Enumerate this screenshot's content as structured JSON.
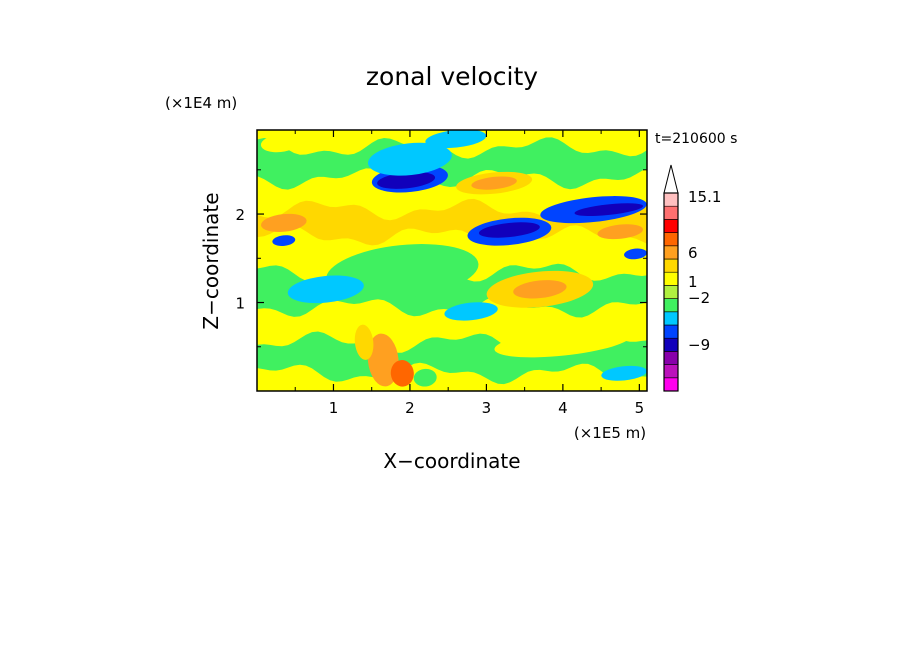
{
  "chart_data": {
    "type": "heatmap",
    "title": "zonal velocity",
    "xlabel": "X−coordinate",
    "ylabel": "Z−coordinate",
    "x_unit": "(×1E5 m)",
    "y_unit": "(×1E4 m)",
    "time_label": "t=210600 s",
    "xlim": [
      0,
      5.1
    ],
    "ylim": [
      0,
      2.95
    ],
    "x_ticks": [
      1,
      2,
      3,
      4,
      5
    ],
    "y_ticks": [
      1,
      2
    ],
    "x_tick_labels": [
      "1",
      "2",
      "3",
      "4",
      "5"
    ],
    "y_tick_labels": [
      "1",
      "2"
    ],
    "colorbar": {
      "colors": [
        "#f0e",
        "#b1b",
        "#8800aa",
        "#1100bb",
        "#0044ff",
        "#00c8ff",
        "#40f060",
        "#b0f040",
        "#ffff00",
        "#ffd800",
        "#ffa020",
        "#ff6600",
        "#ff0000",
        "#ff7070",
        "#ffc0c0"
      ],
      "tick_labels": [
        "15.1",
        "6",
        "1",
        "−2",
        "−9"
      ],
      "tick_values": [
        15.1,
        6,
        1,
        -2,
        -9
      ],
      "extend": "max"
    },
    "bands": [
      {
        "z": 2.75,
        "color": "#40f060"
      },
      {
        "z": 2.4,
        "color": "#ffff00"
      },
      {
        "z": 2.05,
        "color": "#ffd800"
      },
      {
        "z": 1.75,
        "color": "#ffff00"
      },
      {
        "z": 1.35,
        "color": "#40f060"
      },
      {
        "z": 0.95,
        "color": "#ffff00"
      },
      {
        "z": 0.55,
        "color": "#40f060"
      },
      {
        "z": 0.2,
        "color": "#ffff00"
      }
    ],
    "features": [
      {
        "x": 2.0,
        "z": 2.4,
        "rx": 0.5,
        "rz": 0.15,
        "color": "#0044ff"
      },
      {
        "x": 1.95,
        "z": 2.38,
        "rx": 0.38,
        "rz": 0.09,
        "color": "#1100bb"
      },
      {
        "x": 2.0,
        "z": 2.62,
        "rx": 0.55,
        "rz": 0.18,
        "color": "#00c8ff"
      },
      {
        "x": 3.3,
        "z": 1.8,
        "rx": 0.55,
        "rz": 0.15,
        "color": "#0044ff"
      },
      {
        "x": 3.3,
        "z": 1.82,
        "rx": 0.4,
        "rz": 0.08,
        "color": "#1100bb"
      },
      {
        "x": 4.4,
        "z": 2.05,
        "rx": 0.7,
        "rz": 0.14,
        "color": "#0044ff"
      },
      {
        "x": 4.6,
        "z": 2.05,
        "rx": 0.45,
        "rz": 0.06,
        "color": "#1100bb"
      },
      {
        "x": 0.35,
        "z": 1.7,
        "rx": 0.15,
        "rz": 0.06,
        "color": "#0044ff"
      },
      {
        "x": 4.95,
        "z": 1.55,
        "rx": 0.15,
        "rz": 0.06,
        "color": "#0044ff"
      },
      {
        "x": 1.9,
        "z": 1.35,
        "rx": 1.0,
        "rz": 0.3,
        "color": "#40f060"
      },
      {
        "x": 0.9,
        "z": 1.15,
        "rx": 0.5,
        "rz": 0.15,
        "color": "#00c8ff"
      },
      {
        "x": 2.8,
        "z": 0.9,
        "rx": 0.35,
        "rz": 0.1,
        "color": "#00c8ff"
      },
      {
        "x": 3.7,
        "z": 1.15,
        "rx": 0.7,
        "rz": 0.2,
        "color": "#ffd800"
      },
      {
        "x": 3.7,
        "z": 1.15,
        "rx": 0.35,
        "rz": 0.1,
        "color": "#ffa020"
      },
      {
        "x": 0.35,
        "z": 1.9,
        "rx": 0.3,
        "rz": 0.1,
        "color": "#ffa020"
      },
      {
        "x": 4.75,
        "z": 1.8,
        "rx": 0.3,
        "rz": 0.08,
        "color": "#ffa020"
      },
      {
        "x": 3.1,
        "z": 2.35,
        "rx": 0.5,
        "rz": 0.12,
        "color": "#ffd800"
      },
      {
        "x": 3.1,
        "z": 2.35,
        "rx": 0.3,
        "rz": 0.07,
        "color": "#ffa020"
      },
      {
        "x": 4.0,
        "z": 0.55,
        "rx": 0.9,
        "rz": 0.15,
        "color": "#ffff00"
      },
      {
        "x": 4.8,
        "z": 0.2,
        "rx": 0.3,
        "rz": 0.08,
        "color": "#00c8ff"
      },
      {
        "x": 1.65,
        "z": 0.35,
        "rx": 0.2,
        "rz": 0.3,
        "color": "#ffa020"
      },
      {
        "x": 1.9,
        "z": 0.2,
        "rx": 0.15,
        "rz": 0.15,
        "color": "#ff6600"
      },
      {
        "x": 1.4,
        "z": 0.55,
        "rx": 0.12,
        "rz": 0.2,
        "color": "#ffd800"
      },
      {
        "x": 2.2,
        "z": 0.15,
        "rx": 0.15,
        "rz": 0.1,
        "color": "#40f060"
      },
      {
        "x": 2.6,
        "z": 2.85,
        "rx": 0.4,
        "rz": 0.1,
        "color": "#00c8ff"
      },
      {
        "x": 0.3,
        "z": 2.8,
        "rx": 0.25,
        "rz": 0.1,
        "color": "#ffff00"
      }
    ]
  }
}
